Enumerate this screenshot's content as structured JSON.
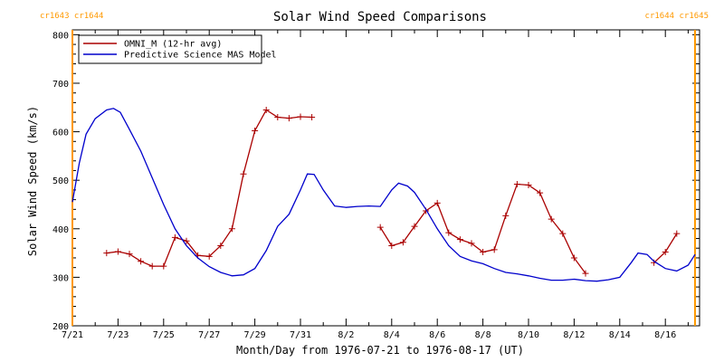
{
  "chart_data": {
    "type": "line",
    "title": "Solar Wind Speed Comparisons",
    "xlabel": "Month/Day from 1976-07-21 to 1976-08-17 (UT)",
    "ylabel": "Solar Wind Speed (km/s)",
    "xlim": [
      0,
      27.5
    ],
    "ylim": [
      200,
      810
    ],
    "x_ticks": [
      {
        "x": 0,
        "label": "7/21"
      },
      {
        "x": 2,
        "label": "7/23"
      },
      {
        "x": 4,
        "label": "7/25"
      },
      {
        "x": 6,
        "label": "7/27"
      },
      {
        "x": 8,
        "label": "7/29"
      },
      {
        "x": 10,
        "label": "7/31"
      },
      {
        "x": 12,
        "label": "8/2"
      },
      {
        "x": 14,
        "label": "8/4"
      },
      {
        "x": 16,
        "label": "8/6"
      },
      {
        "x": 18,
        "label": "8/8"
      },
      {
        "x": 20,
        "label": "8/10"
      },
      {
        "x": 22,
        "label": "8/12"
      },
      {
        "x": 24,
        "label": "8/14"
      },
      {
        "x": 26,
        "label": "8/16"
      }
    ],
    "y_ticks": [
      200,
      300,
      400,
      500,
      600,
      700,
      800
    ],
    "legend_position": "top-left",
    "rotation_markers": [
      {
        "x": 0,
        "label": "cr1643 cr1644",
        "color": "#ff9900",
        "label_side": "left"
      },
      {
        "x": 27.3,
        "label": "cr1644 cr1645",
        "color": "#ff9900",
        "label_side": "right"
      }
    ],
    "series": [
      {
        "name": "OMNI_M (12-hr avg)",
        "color": "#aa0000",
        "markers": true,
        "segments": [
          [
            [
              1.5,
              350
            ],
            [
              2.0,
              353
            ],
            [
              2.5,
              348
            ],
            [
              3.0,
              333
            ],
            [
              3.5,
              323
            ],
            [
              4.0,
              323
            ],
            [
              4.5,
              382
            ],
            [
              5.0,
              375
            ],
            [
              5.5,
              345
            ],
            [
              6.0,
              343
            ],
            [
              6.5,
              365
            ],
            [
              7.0,
              400
            ],
            [
              7.5,
              513
            ],
            [
              8.0,
              602
            ],
            [
              8.5,
              645
            ],
            [
              9.0,
              630
            ],
            [
              9.5,
              628
            ],
            [
              10.0,
              631
            ],
            [
              10.5,
              630
            ]
          ],
          [
            [
              13.5,
              403
            ],
            [
              14.0,
              365
            ],
            [
              14.5,
              372
            ],
            [
              15.0,
              405
            ],
            [
              15.5,
              437
            ],
            [
              16.0,
              453
            ],
            [
              16.5,
              392
            ],
            [
              17.0,
              378
            ],
            [
              17.5,
              370
            ],
            [
              18.0,
              352
            ],
            [
              18.5,
              357
            ],
            [
              19.0,
              427
            ],
            [
              19.5,
              492
            ],
            [
              20.0,
              490
            ],
            [
              20.5,
              474
            ],
            [
              21.0,
              420
            ],
            [
              21.5,
              390
            ],
            [
              22.0,
              340
            ],
            [
              22.5,
              308
            ]
          ],
          [
            [
              25.5,
              330
            ],
            [
              26.0,
              352
            ],
            [
              26.5,
              390
            ]
          ]
        ]
      },
      {
        "name": "Predictive Science MAS Model",
        "color": "#0000cc",
        "markers": false,
        "segments": [
          [
            [
              0,
              455
            ],
            [
              0.3,
              535
            ],
            [
              0.6,
              595
            ],
            [
              1.0,
              627
            ],
            [
              1.5,
              645
            ],
            [
              1.8,
              648
            ],
            [
              2.1,
              640
            ],
            [
              2.5,
              605
            ],
            [
              3.0,
              560
            ],
            [
              3.5,
              505
            ],
            [
              4.0,
              450
            ],
            [
              4.5,
              400
            ],
            [
              5.0,
              365
            ],
            [
              5.5,
              340
            ],
            [
              6.0,
              322
            ],
            [
              6.5,
              310
            ],
            [
              7.0,
              303
            ],
            [
              7.5,
              305
            ],
            [
              8.0,
              318
            ],
            [
              8.5,
              355
            ],
            [
              9.0,
              405
            ],
            [
              9.5,
              430
            ],
            [
              10.0,
              480
            ],
            [
              10.3,
              513
            ],
            [
              10.6,
              512
            ],
            [
              11.0,
              480
            ],
            [
              11.5,
              447
            ],
            [
              12.0,
              444
            ],
            [
              12.5,
              446
            ],
            [
              13.0,
              447
            ],
            [
              13.5,
              446
            ],
            [
              14.0,
              480
            ],
            [
              14.3,
              494
            ],
            [
              14.7,
              488
            ],
            [
              15.0,
              475
            ],
            [
              15.5,
              440
            ],
            [
              16.0,
              400
            ],
            [
              16.5,
              365
            ],
            [
              17.0,
              343
            ],
            [
              17.5,
              334
            ],
            [
              18.0,
              328
            ],
            [
              18.5,
              318
            ],
            [
              19.0,
              310
            ],
            [
              19.5,
              307
            ],
            [
              20.0,
              303
            ],
            [
              20.5,
              298
            ],
            [
              21.0,
              294
            ],
            [
              21.5,
              294
            ],
            [
              22.0,
              296
            ],
            [
              22.5,
              293
            ],
            [
              23.0,
              292
            ],
            [
              23.5,
              295
            ],
            [
              24.0,
              300
            ],
            [
              24.5,
              330
            ],
            [
              24.8,
              350
            ],
            [
              25.2,
              347
            ],
            [
              25.5,
              333
            ],
            [
              26.0,
              318
            ],
            [
              26.5,
              313
            ],
            [
              27.0,
              325
            ],
            [
              27.3,
              347
            ]
          ]
        ]
      }
    ]
  }
}
